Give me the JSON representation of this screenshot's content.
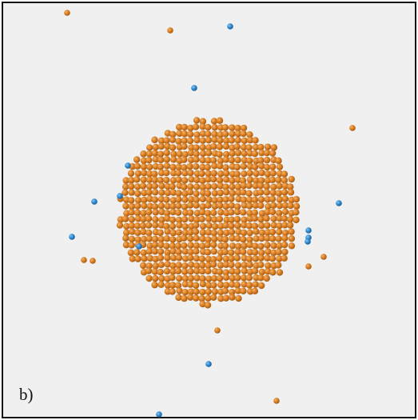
{
  "panel_label": "b)"
}
